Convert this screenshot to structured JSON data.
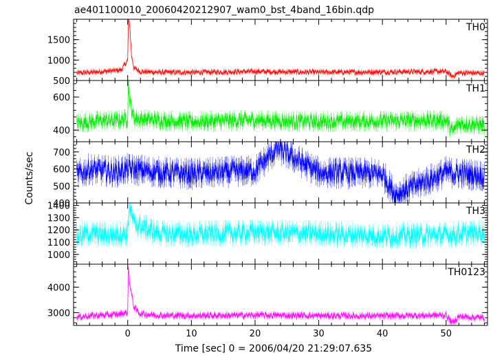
{
  "chart_data": {
    "type": "line",
    "title": "ae401100010_20060420212907_wam0_bst_4band_16bin.qdp",
    "xlabel": "Time [sec] 0 = 2006/04/20 21:29:07.635",
    "ylabel": "Counts/sec",
    "xlim": [
      -8.5,
      56.5
    ],
    "x_ticks": [
      0,
      10,
      20,
      30,
      40,
      50
    ],
    "x_tick_labels": [
      "0",
      "10",
      "20",
      "30",
      "40",
      "50"
    ],
    "series": [
      {
        "name": "TH0",
        "color": "#ff0000",
        "ylim": [
          500,
          2000
        ],
        "y_ticks": [
          500,
          1000,
          1500
        ],
        "y_tick_labels": [
          "500",
          "1000",
          "1500"
        ],
        "baseline": 690,
        "noise": 55,
        "peak_time": 0.1,
        "peak_value": 1950,
        "values_note": "",
        "points": [
          [
            -8,
            680
          ],
          [
            -6,
            700
          ],
          [
            -4,
            720
          ],
          [
            -2,
            740
          ],
          [
            -1,
            760
          ],
          [
            0,
            1000
          ],
          [
            0.1,
            1950
          ],
          [
            0.3,
            1900
          ],
          [
            0.6,
            1100
          ],
          [
            1,
            800
          ],
          [
            2,
            720
          ],
          [
            5,
            700
          ],
          [
            10,
            700
          ],
          [
            20,
            720
          ],
          [
            30,
            700
          ],
          [
            40,
            710
          ],
          [
            50,
            720
          ],
          [
            51,
            600
          ],
          [
            52,
            690
          ],
          [
            56,
            680
          ]
        ]
      },
      {
        "name": "TH1",
        "color": "#00ee00",
        "ylim": [
          330,
          700
        ],
        "y_ticks": [
          400,
          600
        ],
        "y_tick_labels": [
          "400",
          "600"
        ],
        "baseline": 450,
        "noise": 40,
        "peak_time": 0.1,
        "peak_value": 690,
        "points": [
          [
            -8,
            440
          ],
          [
            -6,
            450
          ],
          [
            -4,
            460
          ],
          [
            -2,
            455
          ],
          [
            0,
            470
          ],
          [
            0.1,
            690
          ],
          [
            0.4,
            560
          ],
          [
            1,
            470
          ],
          [
            5,
            460
          ],
          [
            10,
            450
          ],
          [
            20,
            460
          ],
          [
            30,
            450
          ],
          [
            40,
            455
          ],
          [
            50,
            460
          ],
          [
            51,
            390
          ],
          [
            52,
            440
          ],
          [
            56,
            430
          ]
        ]
      },
      {
        "name": "TH2",
        "color": "#0000ff",
        "ylim": [
          400,
          760
        ],
        "y_ticks": [
          400,
          500,
          600,
          700
        ],
        "y_tick_labels": [
          "400",
          "500",
          "600",
          "700"
        ],
        "baseline": 580,
        "noise": 60,
        "peak_time": null,
        "peak_value": null,
        "points": [
          [
            -8,
            560
          ],
          [
            -6,
            600
          ],
          [
            -4,
            590
          ],
          [
            -2,
            580
          ],
          [
            0,
            600
          ],
          [
            5,
            580
          ],
          [
            10,
            570
          ],
          [
            20,
            590
          ],
          [
            23.5,
            720
          ],
          [
            30,
            580
          ],
          [
            40,
            570
          ],
          [
            42,
            450
          ],
          [
            50,
            580
          ],
          [
            56,
            560
          ]
        ]
      },
      {
        "name": "TH3",
        "color": "#00ffff",
        "ylim": [
          920,
          1420
        ],
        "y_ticks": [
          1000,
          1100,
          1200,
          1300,
          1400
        ],
        "y_tick_labels": [
          "1000",
          "1100",
          "1200",
          "1300",
          "1400"
        ],
        "baseline": 1160,
        "noise": 70,
        "peak_time": 0.2,
        "peak_value": 1390,
        "points": [
          [
            -8,
            1150
          ],
          [
            -6,
            1170
          ],
          [
            -4,
            1160
          ],
          [
            -2,
            1160
          ],
          [
            0,
            1180
          ],
          [
            0.2,
            1390
          ],
          [
            1,
            1250
          ],
          [
            5,
            1170
          ],
          [
            10,
            1160
          ],
          [
            20,
            1180
          ],
          [
            30,
            1170
          ],
          [
            40,
            1150
          ],
          [
            50,
            1160
          ],
          [
            56,
            1180
          ]
        ]
      },
      {
        "name": "TH0123",
        "color": "#ff00ff",
        "ylim": [
          2500,
          4900
        ],
        "y_ticks": [
          3000,
          4000
        ],
        "y_tick_labels": [
          "3000",
          "4000"
        ],
        "baseline": 2850,
        "noise": 110,
        "peak_time": 0.1,
        "peak_value": 4800,
        "points": [
          [
            -8,
            2820
          ],
          [
            -6,
            2880
          ],
          [
            -4,
            2900
          ],
          [
            -2,
            2920
          ],
          [
            0,
            3000
          ],
          [
            0.1,
            4800
          ],
          [
            0.4,
            4000
          ],
          [
            1,
            3200
          ],
          [
            2,
            2950
          ],
          [
            5,
            2900
          ],
          [
            10,
            2880
          ],
          [
            20,
            2900
          ],
          [
            30,
            2880
          ],
          [
            40,
            2870
          ],
          [
            50,
            2900
          ],
          [
            51,
            2600
          ],
          [
            52,
            2850
          ],
          [
            56,
            2800
          ]
        ]
      }
    ],
    "grid": false,
    "legend": "panel labels top-right"
  }
}
